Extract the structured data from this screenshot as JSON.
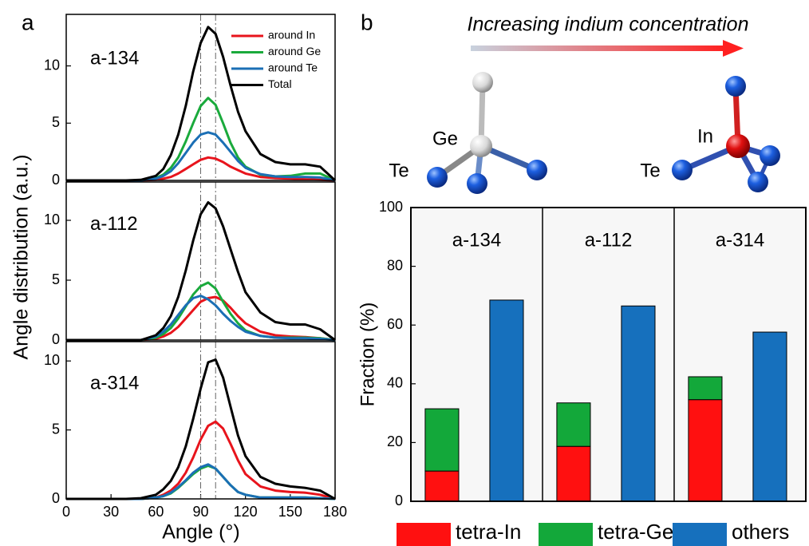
{
  "figure": {
    "panel_labels": [
      "a",
      "b"
    ],
    "a_xlabel": "Angle (°)",
    "a_ylabel": "Angle distribution (a.u.)",
    "b_title": "Increasing indium concentration",
    "molecule_labels": [
      "Ge",
      "Te",
      "In",
      "Te"
    ]
  },
  "chart_data": [
    {
      "type": "line",
      "title": "a-134",
      "xlim": [
        0,
        180
      ],
      "ylim": [
        0,
        14.5
      ],
      "yticks": [
        0,
        5,
        10
      ],
      "legend": "upper right",
      "reference_lines": [
        90,
        100
      ],
      "x": [
        0,
        40,
        50,
        60,
        65,
        70,
        75,
        80,
        85,
        90,
        95,
        100,
        105,
        110,
        115,
        120,
        130,
        140,
        150,
        160,
        170,
        180
      ],
      "series": [
        {
          "name": "around In",
          "color": "#e8141c",
          "values": [
            0,
            0,
            0,
            0.05,
            0.15,
            0.3,
            0.6,
            1,
            1.4,
            1.8,
            2,
            1.9,
            1.6,
            1.2,
            0.9,
            0.6,
            0.3,
            0.2,
            0.15,
            0.1,
            0.05,
            0
          ]
        },
        {
          "name": "around Ge",
          "color": "#1aaa3c",
          "values": [
            0,
            0,
            0,
            0.2,
            0.5,
            1.1,
            2,
            3.4,
            5,
            6.5,
            7.2,
            6.6,
            5,
            3.3,
            2,
            1.2,
            0.5,
            0.35,
            0.4,
            0.6,
            0.6,
            0
          ]
        },
        {
          "name": "around Te",
          "color": "#1b6fb5",
          "values": [
            0,
            0,
            0,
            0.15,
            0.4,
            0.8,
            1.5,
            2.4,
            3.3,
            4,
            4.2,
            4,
            3.3,
            2.5,
            1.7,
            1.1,
            0.55,
            0.35,
            0.3,
            0.3,
            0.25,
            0
          ]
        },
        {
          "name": "Total",
          "color": "#000000",
          "values": [
            0,
            0,
            0.05,
            0.4,
            1,
            2.2,
            4,
            6.5,
            9.5,
            12,
            13.4,
            12.8,
            10.8,
            8.3,
            6,
            4.3,
            2.3,
            1.6,
            1.4,
            1.4,
            1.2,
            0
          ]
        }
      ]
    },
    {
      "type": "line",
      "title": "a-112",
      "xlim": [
        0,
        180
      ],
      "ylim": [
        0,
        13.2
      ],
      "yticks": [
        0,
        5,
        10
      ],
      "reference_lines": [
        90,
        100
      ],
      "x": [
        0,
        40,
        50,
        60,
        65,
        70,
        75,
        80,
        85,
        90,
        95,
        100,
        105,
        110,
        115,
        120,
        130,
        140,
        150,
        160,
        170,
        180
      ],
      "series": [
        {
          "color": "#e8141c",
          "values": [
            0,
            0,
            0,
            0.1,
            0.3,
            0.6,
            1.1,
            1.8,
            2.5,
            3.2,
            3.5,
            3.6,
            3.3,
            2.7,
            2,
            1.4,
            0.7,
            0.4,
            0.3,
            0.25,
            0.15,
            0
          ]
        },
        {
          "color": "#1aaa3c",
          "values": [
            0,
            0,
            0,
            0.2,
            0.5,
            1,
            1.8,
            2.8,
            3.8,
            4.5,
            4.8,
            4.3,
            3.2,
            2.2,
            1.4,
            0.8,
            0.35,
            0.2,
            0.2,
            0.2,
            0.15,
            0
          ]
        },
        {
          "color": "#1b6fb5",
          "values": [
            0,
            0,
            0,
            0.3,
            0.7,
            1.3,
            2.1,
            2.9,
            3.5,
            3.7,
            3.4,
            2.9,
            2.2,
            1.6,
            1.1,
            0.7,
            0.35,
            0.2,
            0.15,
            0.15,
            0.1,
            0
          ]
        },
        {
          "color": "#000000",
          "values": [
            0,
            0,
            0,
            0.4,
            1,
            2,
            3.6,
            5.8,
            8.3,
            10.5,
            11.5,
            11,
            9.5,
            7.6,
            5.7,
            4,
            2.3,
            1.5,
            1.3,
            1.3,
            0.9,
            0
          ]
        }
      ]
    },
    {
      "type": "line",
      "title": "a-314",
      "xlim": [
        0,
        180
      ],
      "ylim": [
        0,
        11.4
      ],
      "yticks": [
        0,
        5,
        10
      ],
      "xticks": [
        0,
        30,
        60,
        90,
        120,
        150,
        180
      ],
      "reference_lines": [
        90,
        100
      ],
      "x": [
        0,
        40,
        50,
        60,
        65,
        70,
        75,
        80,
        85,
        90,
        95,
        100,
        105,
        110,
        115,
        120,
        130,
        140,
        150,
        160,
        170,
        180
      ],
      "series": [
        {
          "color": "#e8141c",
          "values": [
            0,
            0,
            0,
            0.1,
            0.3,
            0.6,
            1.1,
            1.9,
            3,
            4.3,
            5.3,
            5.6,
            5.1,
            4,
            2.8,
            1.8,
            0.9,
            0.6,
            0.5,
            0.45,
            0.3,
            0
          ]
        },
        {
          "color": "#1aaa3c",
          "values": [
            0,
            0,
            0,
            0.1,
            0.2,
            0.4,
            0.8,
            1.3,
            1.8,
            2.2,
            2.4,
            2.2,
            1.6,
            1,
            0.5,
            0.3,
            0.1,
            0.1,
            0.1,
            0.1,
            0.05,
            0
          ]
        },
        {
          "color": "#1b6fb5",
          "values": [
            0,
            0,
            0,
            0.1,
            0.2,
            0.45,
            0.85,
            1.35,
            1.9,
            2.3,
            2.5,
            2.2,
            1.6,
            1,
            0.5,
            0.3,
            0.1,
            0.1,
            0.1,
            0.1,
            0.05,
            0
          ]
        },
        {
          "color": "#000000",
          "values": [
            0,
            0,
            0.05,
            0.3,
            0.7,
            1.3,
            2.3,
            3.8,
            5.8,
            8,
            9.9,
            10.1,
            8.8,
            6.7,
            4.6,
            3.1,
            1.6,
            1.1,
            0.9,
            0.8,
            0.6,
            0
          ]
        }
      ]
    },
    {
      "type": "bar",
      "ylabel": "Fraction (%)",
      "ylim": [
        0,
        100
      ],
      "yticks": [
        0,
        20,
        40,
        60,
        80,
        100
      ],
      "legend": "bottom",
      "categories": [
        "a-134",
        "a-112",
        "a-314"
      ],
      "series": [
        {
          "name": "tetra-In",
          "color": "#ff1010",
          "values": [
            10.3,
            18.7,
            34.6
          ]
        },
        {
          "name": "tetra-Ge",
          "color": "#13a83a",
          "values": [
            21.2,
            14.8,
            7.8
          ]
        },
        {
          "name": "others",
          "color": "#1670bd",
          "values": [
            68.5,
            66.5,
            57.6
          ]
        }
      ]
    }
  ]
}
